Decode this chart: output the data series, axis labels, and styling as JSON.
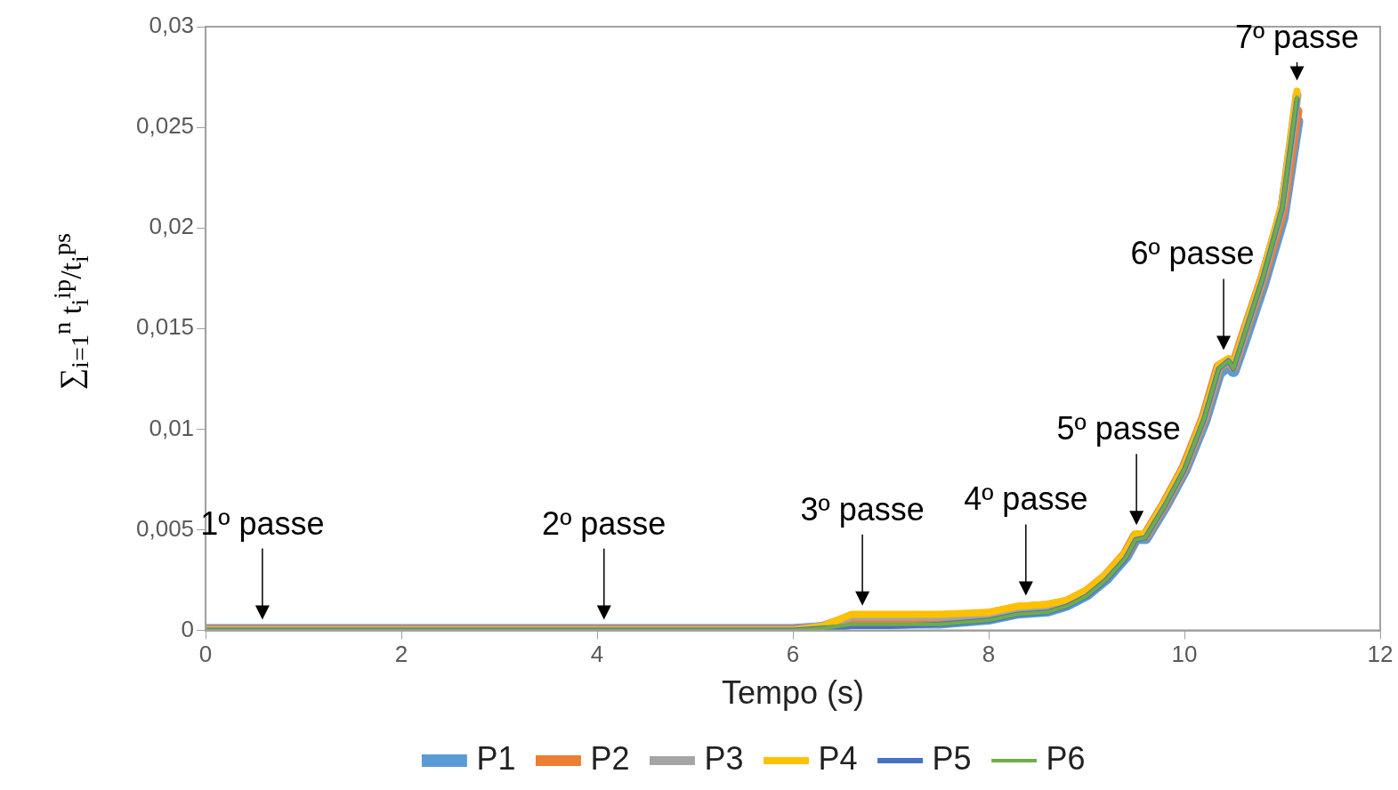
{
  "chart_data": {
    "type": "line",
    "xlabel": "Tempo (s)",
    "ylabel": "∑$_{i=1}$$^{n}$ t$_{i}$$^{ip}$/t$_{i}$$^{ps}$",
    "x": [
      0,
      5.5,
      6.0,
      6.3,
      6.6,
      7.0,
      7.5,
      8.0,
      8.3,
      8.6,
      8.8,
      9.0,
      9.2,
      9.4,
      9.5,
      9.6,
      9.8,
      10.0,
      10.2,
      10.35,
      10.45,
      10.5,
      10.6,
      10.8,
      11.0,
      11.15
    ],
    "series": [
      {
        "name": "P1",
        "color": "#5b9bd5",
        "values": [
          0,
          0,
          0,
          0.0001,
          0.0004,
          0.0004,
          0.0004,
          0.0006,
          0.0009,
          0.001,
          0.0013,
          0.0018,
          0.0026,
          0.0037,
          0.0046,
          0.0046,
          0.0062,
          0.008,
          0.0104,
          0.0128,
          0.0132,
          0.0129,
          0.0143,
          0.0172,
          0.0205,
          0.0253
        ]
      },
      {
        "name": "P2",
        "color": "#ed7d31",
        "values": [
          0,
          0,
          0,
          0.0001,
          0.0006,
          0.0006,
          0.0006,
          0.0008,
          0.0011,
          0.0012,
          0.0014,
          0.0019,
          0.0027,
          0.0038,
          0.0047,
          0.0047,
          0.0063,
          0.0081,
          0.0106,
          0.0131,
          0.0134,
          0.0131,
          0.0146,
          0.0175,
          0.0208,
          0.0258
        ]
      },
      {
        "name": "P3",
        "color": "#a5a5a5",
        "values": [
          0,
          0,
          0,
          0.0002,
          0.0007,
          0.0007,
          0.0007,
          0.0008,
          0.0011,
          0.0012,
          0.0014,
          0.0019,
          0.0027,
          0.0038,
          0.0047,
          0.0047,
          0.0063,
          0.0081,
          0.0106,
          0.0131,
          0.0134,
          0.0131,
          0.0146,
          0.0176,
          0.0211,
          0.0266
        ]
      },
      {
        "name": "P4",
        "color": "#ffc000",
        "values": [
          0,
          0,
          0,
          0.0002,
          0.0008,
          0.0008,
          0.0008,
          0.0009,
          0.0012,
          0.0013,
          0.0015,
          0.002,
          0.0028,
          0.0039,
          0.0048,
          0.0048,
          0.0064,
          0.0082,
          0.0107,
          0.0132,
          0.0135,
          0.0132,
          0.0147,
          0.0177,
          0.0212,
          0.0268
        ]
      },
      {
        "name": "P5",
        "color": "#4472c4",
        "values": [
          0,
          0,
          0,
          0.0001,
          0.0002,
          0.0002,
          0.0003,
          0.0005,
          0.0008,
          0.0009,
          0.0012,
          0.0017,
          0.0025,
          0.0036,
          0.0045,
          0.0046,
          0.0062,
          0.008,
          0.0105,
          0.013,
          0.0134,
          0.013,
          0.0145,
          0.0175,
          0.021,
          0.0264
        ]
      },
      {
        "name": "P6",
        "color": "#70ad47",
        "values": [
          0,
          0,
          0,
          0.0001,
          0.0003,
          0.0003,
          0.0003,
          0.0005,
          0.0008,
          0.0009,
          0.0012,
          0.0017,
          0.0025,
          0.0036,
          0.0045,
          0.0046,
          0.0062,
          0.008,
          0.0105,
          0.013,
          0.0134,
          0.013,
          0.0145,
          0.0175,
          0.021,
          0.0265
        ]
      }
    ],
    "xlim": [
      0,
      12
    ],
    "xticks": [
      0,
      2,
      4,
      6,
      8,
      10,
      12
    ],
    "ylim": [
      0,
      0.03
    ],
    "yticks": [
      {
        "value": 0,
        "label": "0"
      },
      {
        "value": 0.005,
        "label": "0,005"
      },
      {
        "value": 0.01,
        "label": "0,01"
      },
      {
        "value": 0.015,
        "label": "0,015"
      },
      {
        "value": 0.02,
        "label": "0,02"
      },
      {
        "value": 0.025,
        "label": "0,025"
      },
      {
        "value": 0.03,
        "label": "0,03"
      }
    ],
    "annotations": [
      {
        "text": "1º passe",
        "x": 0.58,
        "y": 0
      },
      {
        "text": "2º passe",
        "x": 4.07,
        "y": 0
      },
      {
        "text": "3º passe",
        "x": 6.71,
        "y": 0.0007
      },
      {
        "text": "4º passe",
        "x": 8.38,
        "y": 0.0012
      },
      {
        "text": "5º passe",
        "x": 9.51,
        "y": 0.0047
      },
      {
        "text": "6º passe",
        "x": 10.4,
        "y": 0.0134
      },
      {
        "text": "7º passe",
        "x": 11.15,
        "y": 0.0268
      }
    ],
    "grid": false,
    "legend": "bottom"
  }
}
